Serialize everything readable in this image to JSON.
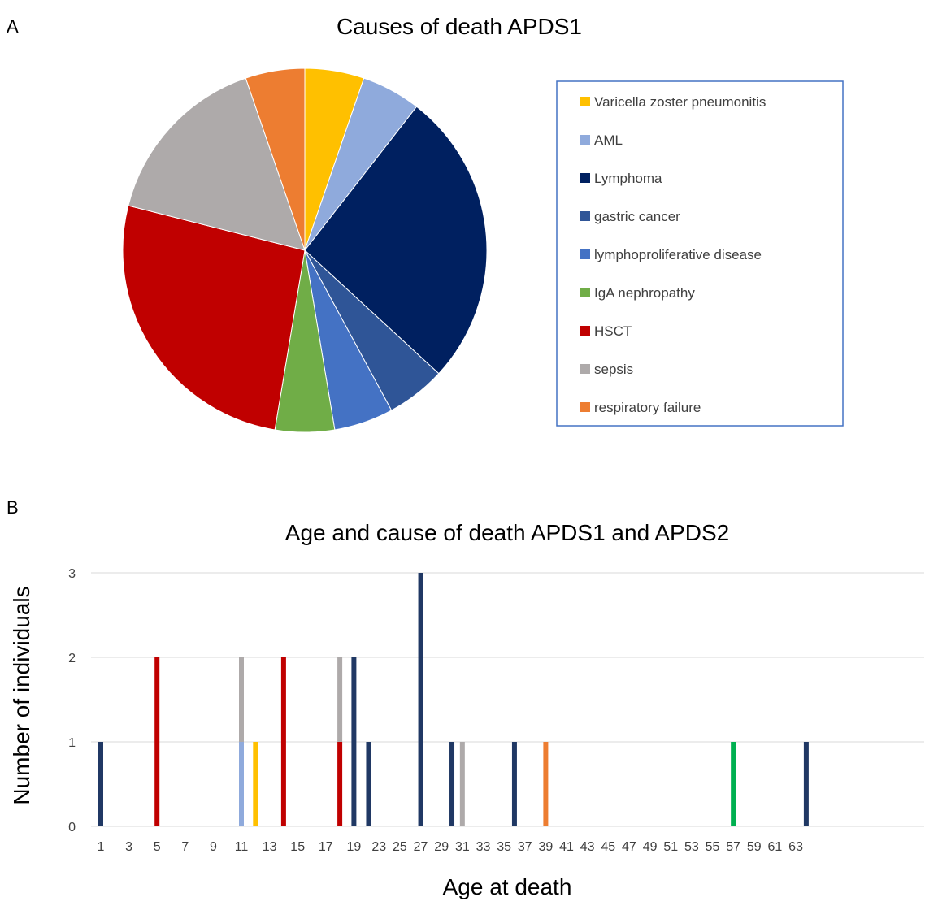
{
  "chart_data": [
    {
      "panel": "A",
      "type": "pie",
      "title": "Causes of death APDS1",
      "legend_position": "right",
      "categories": [
        "Varicella zoster pneumonitis",
        "AML",
        "Lymphoma",
        "gastric cancer",
        "lymphoproliferative disease",
        "IgA nephropathy",
        "HSCT",
        "sepsis",
        "respiratory failure"
      ],
      "values": [
        1,
        1,
        5,
        1,
        1,
        1,
        5,
        3,
        1
      ],
      "colors": [
        "#FFC000",
        "#8FAADC",
        "#002060",
        "#2F5597",
        "#4472C4",
        "#70AD47",
        "#C00000",
        "#AEAAAA",
        "#ED7D31"
      ]
    },
    {
      "panel": "B",
      "type": "bar",
      "stacked": true,
      "title": "Age and cause of death APDS1 and APDS2",
      "xlabel": "Age at death",
      "ylabel": "Number of individuals",
      "ylim": [
        0,
        3
      ],
      "yticks": [
        0,
        1,
        2,
        3
      ],
      "grid": true,
      "categories": [
        "1",
        "3",
        "5",
        "7",
        "9",
        "11",
        "13",
        "15",
        "17",
        "19",
        "23",
        "25",
        "27",
        "29",
        "31",
        "33",
        "35",
        "37",
        "39",
        "41",
        "43",
        "45",
        "47",
        "49",
        "51",
        "53",
        "55",
        "57",
        "59",
        "61",
        "63"
      ],
      "bars": [
        {
          "x": 1,
          "segments": [
            {
              "value": 1,
              "color": "#203864"
            }
          ]
        },
        {
          "x": 5,
          "segments": [
            {
              "value": 2,
              "color": "#C00000"
            }
          ]
        },
        {
          "x": 11,
          "segments": [
            {
              "value": 1,
              "color": "#8FAADC"
            },
            {
              "value": 1,
              "color": "#AEAAAA"
            }
          ]
        },
        {
          "x": 12,
          "segments": [
            {
              "value": 1,
              "color": "#FFC000"
            }
          ]
        },
        {
          "x": 14,
          "segments": [
            {
              "value": 2,
              "color": "#C00000"
            }
          ]
        },
        {
          "x": 18,
          "segments": [
            {
              "value": 1,
              "color": "#C00000"
            },
            {
              "value": 1,
              "color": "#AEAAAA"
            }
          ]
        },
        {
          "x": 19,
          "segments": [
            {
              "value": 2,
              "color": "#203864"
            }
          ]
        },
        {
          "x": 22,
          "segments": [
            {
              "value": 1,
              "color": "#203864"
            }
          ]
        },
        {
          "x": 27,
          "segments": [
            {
              "value": 3,
              "color": "#203864"
            }
          ]
        },
        {
          "x": 30,
          "segments": [
            {
              "value": 1,
              "color": "#203864"
            }
          ]
        },
        {
          "x": 31,
          "segments": [
            {
              "value": 1,
              "color": "#AEAAAA"
            }
          ]
        },
        {
          "x": 36,
          "segments": [
            {
              "value": 1,
              "color": "#203864"
            }
          ]
        },
        {
          "x": 39,
          "segments": [
            {
              "value": 1,
              "color": "#ED7D31"
            }
          ]
        },
        {
          "x": 57,
          "segments": [
            {
              "value": 1,
              "color": "#00B050"
            }
          ]
        },
        {
          "x": 64,
          "segments": [
            {
              "value": 1,
              "color": "#203864"
            }
          ]
        }
      ]
    }
  ],
  "labels": {
    "panel_a": "A",
    "panel_b": "B"
  },
  "colors": {
    "legend_border": "#4472C4",
    "grid": "#D9D9D9",
    "tick_text": "#404040"
  }
}
